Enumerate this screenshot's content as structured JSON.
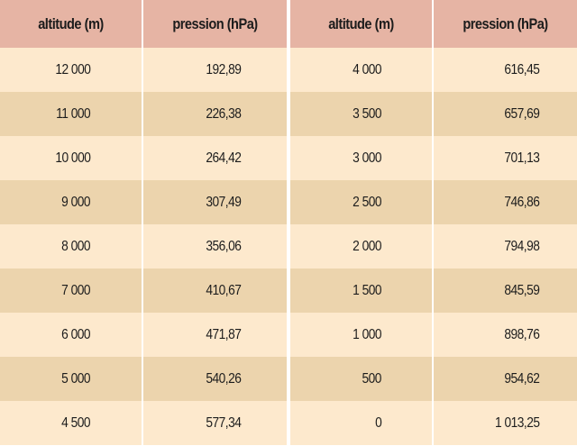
{
  "table": {
    "headers": [
      "altitude (m)",
      "pression (hPa)",
      "altitude (m)",
      "pression (hPa)"
    ],
    "colors": {
      "header_bg": "#e6b4a4",
      "row_light": "#fde9cd",
      "row_dark": "#ecd4ad",
      "divider": "#ffffff",
      "text": "#1c1c1c"
    },
    "rows": [
      {
        "alt1": "12 000",
        "p1": "192,89",
        "alt2": "4 000",
        "p2": "616,45"
      },
      {
        "alt1": "11 000",
        "p1": "226,38",
        "alt2": "3 500",
        "p2": "657,69"
      },
      {
        "alt1": "10 000",
        "p1": "264,42",
        "alt2": "3 000",
        "p2": "701,13"
      },
      {
        "alt1": "9 000",
        "p1": "307,49",
        "alt2": "2 500",
        "p2": "746,86"
      },
      {
        "alt1": "8 000",
        "p1": "356,06",
        "alt2": "2 000",
        "p2": "794,98"
      },
      {
        "alt1": "7 000",
        "p1": "410,67",
        "alt2": "1 500",
        "p2": "845,59"
      },
      {
        "alt1": "6 000",
        "p1": "471,87",
        "alt2": "1 000",
        "p2": "898,76"
      },
      {
        "alt1": "5 000",
        "p1": "540,26",
        "alt2": "500",
        "p2": "954,62"
      },
      {
        "alt1": "4 500",
        "p1": "577,34",
        "alt2": "0",
        "p2": "1 013,25"
      }
    ]
  }
}
